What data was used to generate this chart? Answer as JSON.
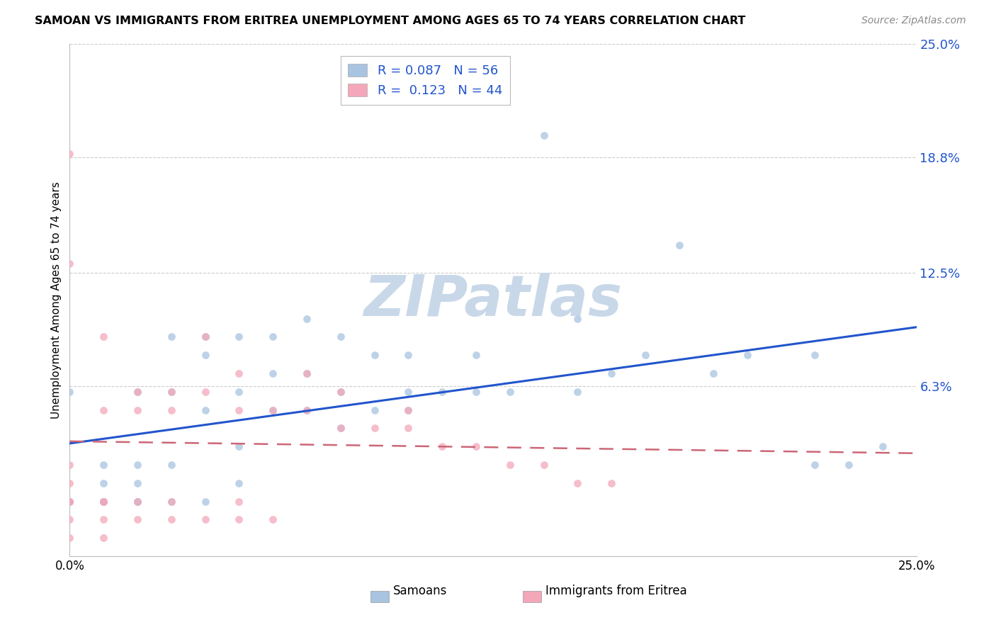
{
  "title": "SAMOAN VS IMMIGRANTS FROM ERITREA UNEMPLOYMENT AMONG AGES 65 TO 74 YEARS CORRELATION CHART",
  "source": "Source: ZipAtlas.com",
  "ylabel": "Unemployment Among Ages 65 to 74 years",
  "xmin": 0.0,
  "xmax": 0.25,
  "ymin": -0.03,
  "ymax": 0.25,
  "ytick_vals": [
    0.063,
    0.125,
    0.188,
    0.25
  ],
  "ytick_labels": [
    "6.3%",
    "12.5%",
    "18.8%",
    "25.0%"
  ],
  "xtick_vals": [
    0.0,
    0.25
  ],
  "xtick_labels": [
    "0.0%",
    "25.0%"
  ],
  "legend_labels": [
    "Samoans",
    "Immigrants from Eritrea"
  ],
  "legend_R": [
    0.087,
    0.123
  ],
  "legend_N": [
    56,
    44
  ],
  "scatter_color_blue": "#a8c4e0",
  "scatter_color_pink": "#f4a7b9",
  "trendline_color_blue": "#2255cc",
  "trendline_color_pink": "#cc6677",
  "watermark": "ZIPatlas",
  "watermark_color": "#c8d8e8",
  "grid_color": "#cccccc",
  "samoans_x": [
    0.0,
    0.0,
    0.0,
    0.0,
    0.01,
    0.01,
    0.01,
    0.01,
    0.01,
    0.02,
    0.02,
    0.02,
    0.02,
    0.02,
    0.03,
    0.03,
    0.03,
    0.03,
    0.04,
    0.04,
    0.04,
    0.04,
    0.05,
    0.05,
    0.05,
    0.05,
    0.06,
    0.06,
    0.06,
    0.07,
    0.07,
    0.07,
    0.08,
    0.08,
    0.08,
    0.09,
    0.09,
    0.1,
    0.1,
    0.1,
    0.11,
    0.12,
    0.12,
    0.13,
    0.14,
    0.15,
    0.15,
    0.16,
    0.17,
    0.18,
    0.19,
    0.2,
    0.22,
    0.22,
    0.23,
    0.24
  ],
  "samoans_y": [
    0.0,
    0.0,
    0.0,
    0.06,
    0.0,
    0.0,
    0.0,
    0.01,
    0.02,
    0.0,
    0.0,
    0.01,
    0.02,
    0.06,
    0.0,
    0.02,
    0.06,
    0.09,
    0.0,
    0.05,
    0.08,
    0.09,
    0.01,
    0.03,
    0.06,
    0.09,
    0.05,
    0.07,
    0.09,
    0.05,
    0.07,
    0.1,
    0.04,
    0.06,
    0.09,
    0.05,
    0.08,
    0.05,
    0.06,
    0.08,
    0.06,
    0.06,
    0.08,
    0.06,
    0.2,
    0.06,
    0.1,
    0.07,
    0.08,
    0.14,
    0.07,
    0.08,
    0.02,
    0.08,
    0.02,
    0.03
  ],
  "eritrea_x": [
    0.0,
    0.0,
    0.0,
    0.0,
    0.0,
    0.0,
    0.0,
    0.0,
    0.01,
    0.01,
    0.01,
    0.01,
    0.01,
    0.01,
    0.02,
    0.02,
    0.02,
    0.02,
    0.03,
    0.03,
    0.03,
    0.03,
    0.04,
    0.04,
    0.04,
    0.05,
    0.05,
    0.05,
    0.05,
    0.06,
    0.06,
    0.07,
    0.07,
    0.08,
    0.08,
    0.09,
    0.1,
    0.1,
    0.11,
    0.12,
    0.13,
    0.14,
    0.15,
    0.16
  ],
  "eritrea_y": [
    -0.02,
    -0.01,
    0.0,
    0.0,
    0.01,
    0.02,
    0.13,
    0.19,
    -0.02,
    -0.01,
    0.0,
    0.0,
    0.05,
    0.09,
    -0.01,
    0.0,
    0.05,
    0.06,
    -0.01,
    0.0,
    0.05,
    0.06,
    -0.01,
    0.06,
    0.09,
    -0.01,
    0.0,
    0.05,
    0.07,
    -0.01,
    0.05,
    0.05,
    0.07,
    0.04,
    0.06,
    0.04,
    0.04,
    0.05,
    0.03,
    0.03,
    0.02,
    0.02,
    0.01,
    0.01
  ]
}
